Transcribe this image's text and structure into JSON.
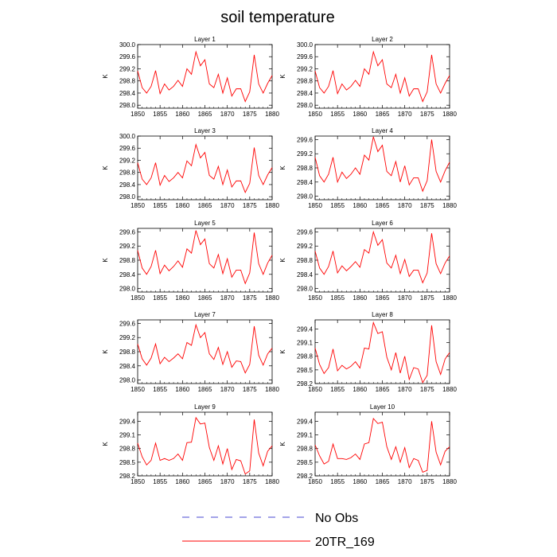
{
  "figure_title": "soil temperature",
  "legend": [
    {
      "label": "No Obs",
      "color": "#4a4ad0",
      "dash": true
    },
    {
      "label": "20TR_169",
      "color": "#ff0000",
      "dash": false
    }
  ],
  "chart_data": {
    "type": "line",
    "title": "soil temperature",
    "xlabel": "",
    "ylabel": "K",
    "x": [
      1850,
      1851,
      1852,
      1853,
      1854,
      1855,
      1856,
      1857,
      1858,
      1859,
      1860,
      1861,
      1862,
      1863,
      1864,
      1865,
      1866,
      1867,
      1868,
      1869,
      1870,
      1871,
      1872,
      1873,
      1874,
      1875,
      1876,
      1877,
      1878,
      1879,
      1880
    ],
    "xlim": [
      1850,
      1880
    ],
    "xticks": [
      1850,
      1855,
      1860,
      1865,
      1870,
      1875,
      1880
    ],
    "panels": [
      {
        "title": "Layer 1",
        "ylim": [
          297.9,
          300.0
        ],
        "yticks": [
          "298.0",
          "298.4",
          "298.8",
          "299.2",
          "299.6",
          "300.0"
        ],
        "series": [
          {
            "name": "20TR_169",
            "color": "#ff0000",
            "values": [
              299.13,
              298.58,
              298.4,
              298.62,
              299.14,
              298.38,
              298.7,
              298.5,
              298.62,
              298.82,
              298.62,
              299.2,
              299.02,
              299.76,
              299.3,
              299.5,
              298.7,
              298.58,
              299.02,
              298.4,
              298.9,
              298.3,
              298.54,
              298.54,
              298.12,
              298.44,
              299.66,
              298.7,
              298.4,
              298.72,
              298.98
            ]
          }
        ]
      },
      {
        "title": "Layer 2",
        "ylim": [
          297.9,
          300.0
        ],
        "yticks": [
          "298.0",
          "298.4",
          "298.8",
          "299.2",
          "299.6",
          "300.0"
        ],
        "series": [
          {
            "name": "20TR_169",
            "color": "#ff0000",
            "values": [
              299.13,
              298.58,
              298.4,
              298.62,
              299.14,
              298.38,
              298.7,
              298.5,
              298.62,
              298.82,
              298.62,
              299.2,
              299.02,
              299.76,
              299.3,
              299.5,
              298.7,
              298.58,
              299.02,
              298.4,
              298.9,
              298.3,
              298.54,
              298.54,
              298.12,
              298.44,
              299.66,
              298.7,
              298.4,
              298.72,
              298.98
            ]
          }
        ]
      },
      {
        "title": "Layer 3",
        "ylim": [
          297.9,
          300.0
        ],
        "yticks": [
          "298.0",
          "298.4",
          "298.8",
          "299.2",
          "299.6",
          "300.0"
        ],
        "series": [
          {
            "name": "20TR_169",
            "color": "#ff0000",
            "values": [
              299.12,
              298.58,
              298.4,
              298.62,
              299.12,
              298.38,
              298.7,
              298.5,
              298.62,
              298.8,
              298.62,
              299.18,
              299.02,
              299.72,
              299.28,
              299.46,
              298.7,
              298.58,
              299.0,
              298.4,
              298.88,
              298.32,
              298.52,
              298.52,
              298.14,
              298.44,
              299.62,
              298.7,
              298.4,
              298.72,
              298.96
            ]
          }
        ]
      },
      {
        "title": "Layer 4",
        "ylim": [
          297.9,
          299.7
        ],
        "yticks": [
          "298.0",
          "298.4",
          "298.8",
          "299.2",
          "299.6"
        ],
        "series": [
          {
            "name": "20TR_169",
            "color": "#ff0000",
            "values": [
              299.1,
              298.58,
              298.4,
              298.62,
              299.1,
              298.4,
              298.68,
              298.5,
              298.62,
              298.8,
              298.62,
              299.16,
              299.02,
              299.68,
              299.26,
              299.44,
              298.7,
              298.58,
              298.98,
              298.4,
              298.86,
              298.32,
              298.52,
              298.52,
              298.14,
              298.44,
              299.6,
              298.7,
              298.4,
              298.72,
              298.96
            ]
          }
        ]
      },
      {
        "title": "Layer 5",
        "ylim": [
          297.9,
          299.7
        ],
        "yticks": [
          "298.0",
          "298.4",
          "298.8",
          "299.2",
          "299.6"
        ],
        "series": [
          {
            "name": "20TR_169",
            "color": "#ff0000",
            "values": [
              299.08,
              298.58,
              298.4,
              298.62,
              299.08,
              298.42,
              298.66,
              298.5,
              298.62,
              298.78,
              298.6,
              299.12,
              299.0,
              299.64,
              299.24,
              299.4,
              298.7,
              298.58,
              298.96,
              298.42,
              298.84,
              298.32,
              298.52,
              298.52,
              298.14,
              298.44,
              299.58,
              298.7,
              298.4,
              298.72,
              298.94
            ]
          }
        ]
      },
      {
        "title": "Layer 6",
        "ylim": [
          297.9,
          299.7
        ],
        "yticks": [
          "298.0",
          "298.4",
          "298.8",
          "299.2",
          "299.6"
        ],
        "series": [
          {
            "name": "20TR_169",
            "color": "#ff0000",
            "values": [
              299.06,
              298.58,
              298.4,
              298.62,
              299.06,
              298.44,
              298.64,
              298.5,
              298.62,
              298.76,
              298.6,
              299.1,
              299.0,
              299.6,
              299.22,
              299.38,
              298.72,
              298.58,
              298.94,
              298.42,
              298.82,
              298.34,
              298.52,
              298.52,
              298.16,
              298.44,
              299.56,
              298.7,
              298.42,
              298.72,
              298.92
            ]
          }
        ]
      },
      {
        "title": "Layer 7",
        "ylim": [
          297.9,
          299.7
        ],
        "yticks": [
          "298.0",
          "298.4",
          "298.8",
          "299.2",
          "299.6"
        ],
        "series": [
          {
            "name": "20TR_169",
            "color": "#ff0000",
            "values": [
              299.02,
              298.6,
              298.42,
              298.62,
              299.02,
              298.46,
              298.64,
              298.52,
              298.62,
              298.74,
              298.6,
              299.06,
              298.98,
              299.56,
              299.2,
              299.34,
              298.74,
              298.58,
              298.92,
              298.44,
              298.8,
              298.36,
              298.54,
              298.52,
              298.2,
              298.44,
              299.52,
              298.7,
              298.42,
              298.74,
              298.9
            ]
          }
        ]
      },
      {
        "title": "Layer 8",
        "ylim": [
          298.2,
          299.6
        ],
        "yticks": [
          "298.2",
          "298.5",
          "298.8",
          "299.1",
          "299.4"
        ],
        "series": [
          {
            "name": "20TR_169",
            "color": "#ff0000",
            "values": [
              298.98,
              298.62,
              298.42,
              298.55,
              298.96,
              298.48,
              298.6,
              298.52,
              298.58,
              298.68,
              298.54,
              298.98,
              298.96,
              299.54,
              299.3,
              299.34,
              298.78,
              298.5,
              298.88,
              298.43,
              298.8,
              298.29,
              298.55,
              298.52,
              298.22,
              298.38,
              299.48,
              298.68,
              298.4,
              298.74,
              298.88
            ]
          }
        ]
      },
      {
        "title": "Layer 9",
        "ylim": [
          298.2,
          299.6
        ],
        "yticks": [
          "298.2",
          "298.5",
          "298.8",
          "299.1",
          "299.4"
        ],
        "series": [
          {
            "name": "20TR_169",
            "color": "#ff0000",
            "values": [
              298.92,
              298.62,
              298.44,
              298.54,
              298.92,
              298.54,
              298.58,
              298.54,
              298.58,
              298.68,
              298.54,
              298.93,
              298.94,
              299.48,
              299.34,
              299.36,
              298.82,
              298.54,
              298.86,
              298.46,
              298.8,
              298.34,
              298.56,
              298.53,
              298.24,
              298.31,
              299.44,
              298.7,
              298.42,
              298.74,
              298.86
            ]
          }
        ]
      },
      {
        "title": "Layer 10",
        "ylim": [
          298.2,
          299.6
        ],
        "yticks": [
          "298.2",
          "298.5",
          "298.8",
          "299.1",
          "299.4"
        ],
        "series": [
          {
            "name": "20TR_169",
            "color": "#ff0000",
            "values": [
              298.88,
              298.64,
              298.46,
              298.52,
              298.9,
              298.58,
              298.58,
              298.56,
              298.6,
              298.68,
              298.56,
              298.9,
              298.93,
              299.46,
              299.35,
              299.38,
              298.84,
              298.56,
              298.84,
              298.5,
              298.82,
              298.38,
              298.58,
              298.54,
              298.28,
              298.32,
              299.4,
              298.72,
              298.44,
              298.74,
              298.84
            ]
          }
        ]
      }
    ]
  }
}
